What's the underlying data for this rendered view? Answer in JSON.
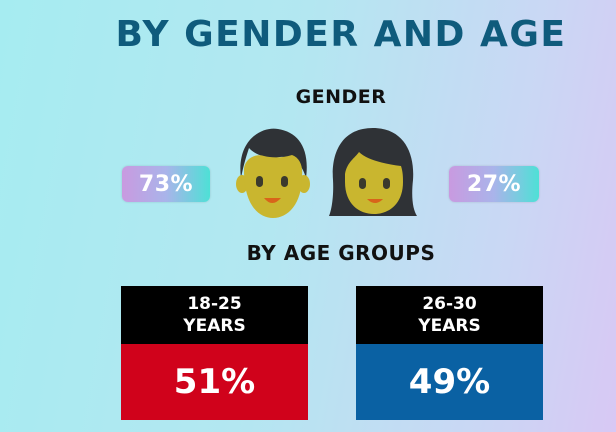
{
  "title": "BY GENDER AND AGE",
  "gender": {
    "label": "GENDER",
    "male": {
      "display": "73%"
    },
    "female": {
      "display": "27%"
    }
  },
  "age": {
    "label": "BY AGE GROUPS",
    "groups": [
      {
        "line1": "18-25",
        "line2": "YEARS",
        "display": "51%",
        "color": "#d0021b"
      },
      {
        "line1": "26-30",
        "line2": "YEARS",
        "display": "49%",
        "color": "#0a61a3"
      }
    ]
  },
  "colors": {
    "title": "#0f5b7c",
    "badge_gradient": [
      "#c99ae0",
      "#4ee0d6"
    ],
    "face": "#c9b62f",
    "hair": "#2f3236"
  },
  "icons": [
    "male-face-icon",
    "female-face-icon"
  ],
  "chart_data": {
    "type": "table",
    "title": "BY GENDER AND AGE",
    "sections": [
      {
        "name": "GENDER",
        "categories": [
          "male",
          "female"
        ],
        "values": [
          73,
          27
        ],
        "unit": "%"
      },
      {
        "name": "BY AGE GROUPS",
        "categories": [
          "18-25 YEARS",
          "26-30 YEARS"
        ],
        "values": [
          51,
          49
        ],
        "unit": "%"
      }
    ]
  }
}
